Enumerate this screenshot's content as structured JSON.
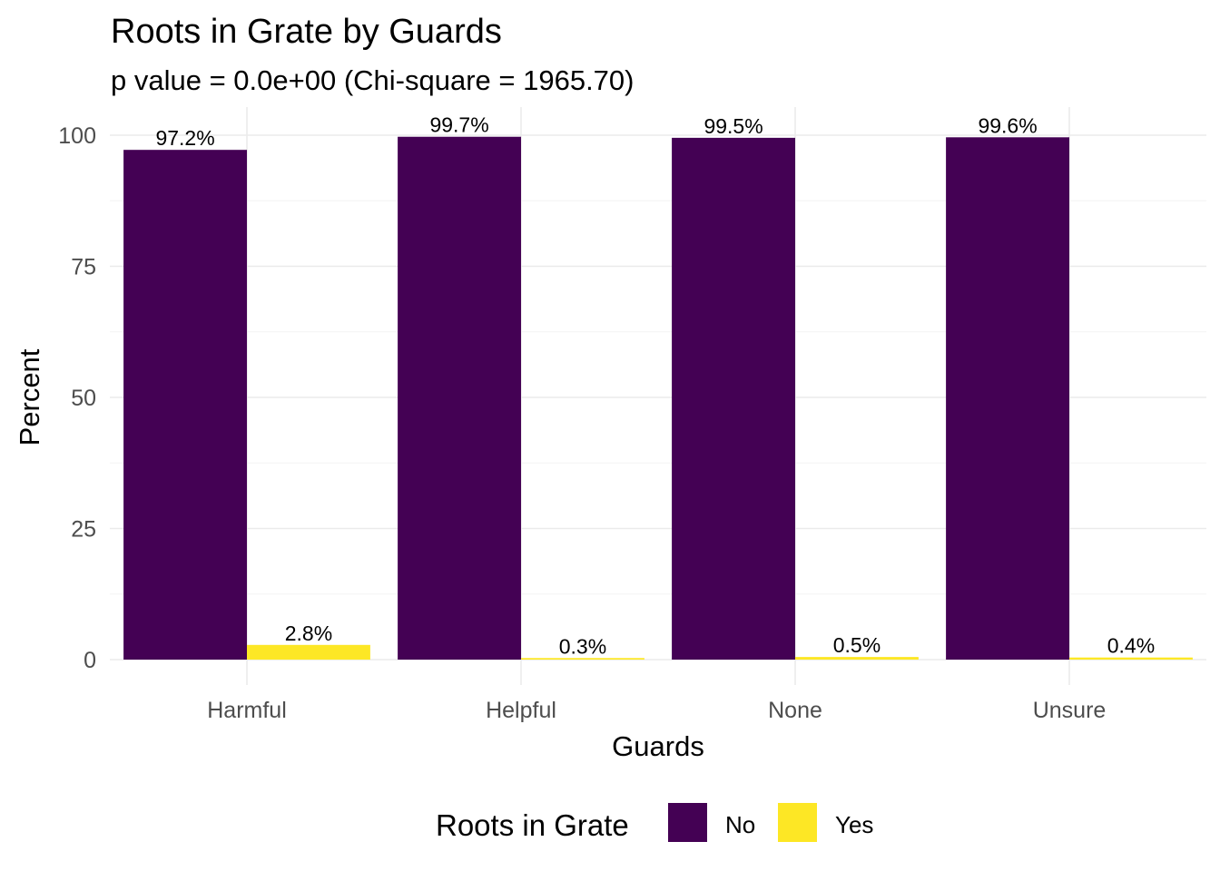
{
  "chart_data": {
    "type": "bar",
    "title": "Roots in Grate by Guards",
    "subtitle": "p value = 0.0e+00 (Chi-square = 1965.70)",
    "xlabel": "Guards",
    "ylabel": "Percent",
    "categories": [
      "Harmful",
      "Helpful",
      "None",
      "Unsure"
    ],
    "ylim": [
      0,
      104
    ],
    "yticks": [
      0,
      25,
      50,
      75,
      100
    ],
    "grid": true,
    "legend": {
      "title": "Roots in Grate",
      "position": "bottom"
    },
    "series": [
      {
        "name": "No",
        "color": "#440154",
        "values": [
          97.2,
          99.7,
          99.5,
          99.6
        ],
        "labels": [
          "97.2%",
          "99.7%",
          "99.5%",
          "99.6%"
        ]
      },
      {
        "name": "Yes",
        "color": "#FDE725",
        "values": [
          2.8,
          0.3,
          0.5,
          0.4
        ],
        "labels": [
          "2.8%",
          "0.3%",
          "0.5%",
          "0.4%"
        ]
      }
    ]
  }
}
